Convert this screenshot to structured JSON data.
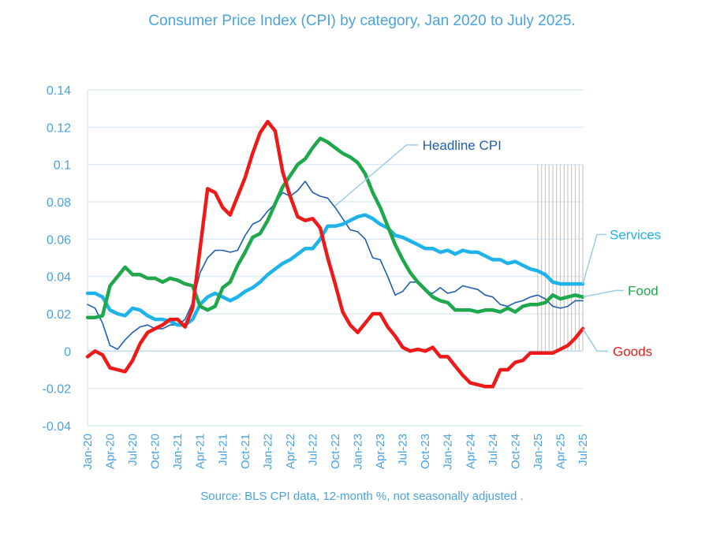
{
  "chart_data": {
    "type": "line",
    "title": "Consumer Price Index (CPI) by category, Jan 2020 to July 2025.",
    "note": "Source: BLS CPI data, 12-month %, not seasonally adjusted .",
    "xlabel": "",
    "ylabel": "",
    "ylim": [
      -0.04,
      0.14
    ],
    "yticks": [
      "0.14",
      "0.12",
      "0.1",
      "0.08",
      "0.06",
      "0.04",
      "0.02",
      "0",
      "-0.02",
      "-0.04"
    ],
    "ytick_values": [
      0.14,
      0.12,
      0.1,
      0.08,
      0.06,
      0.04,
      0.02,
      0,
      -0.02,
      -0.04
    ],
    "xtick_labels": [
      "Jan-20",
      "Apr-20",
      "Jul-20",
      "Oct-20",
      "Jan-21",
      "Apr-21",
      "Jul-21",
      "Oct-21",
      "Jan-22",
      "Apr-22",
      "Jul-22",
      "Oct-22",
      "Jan-23",
      "Apr-23",
      "Jul-23",
      "Oct-23",
      "Jan-24",
      "Apr-24",
      "Jul-24",
      "Oct-24",
      "Jan-25",
      "Apr-25",
      "Jul-25"
    ],
    "xtick_index": [
      0,
      3,
      6,
      9,
      12,
      15,
      18,
      21,
      24,
      27,
      30,
      33,
      36,
      39,
      42,
      45,
      48,
      51,
      54,
      57,
      60,
      63,
      66
    ],
    "n_months": 67,
    "grid": true,
    "forecast_shading": {
      "start_index": 60,
      "end_index": 66,
      "ymin": 0,
      "ymax": 0.1
    },
    "series": [
      {
        "name": "Headline CPI",
        "label": "Headline CPI",
        "color": "#1f5fb0",
        "width": 1.6,
        "callout": {
          "index": 33,
          "side": "above"
        },
        "values": [
          0.025,
          0.023,
          0.015,
          0.003,
          0.001,
          0.006,
          0.01,
          0.013,
          0.014,
          0.012,
          0.012,
          0.014,
          0.014,
          0.017,
          0.026,
          0.042,
          0.05,
          0.054,
          0.054,
          0.053,
          0.054,
          0.062,
          0.068,
          0.07,
          0.075,
          0.079,
          0.085,
          0.083,
          0.086,
          0.091,
          0.085,
          0.083,
          0.082,
          0.077,
          0.071,
          0.065,
          0.064,
          0.06,
          0.05,
          0.049,
          0.04,
          0.03,
          0.032,
          0.037,
          0.037,
          0.032,
          0.031,
          0.034,
          0.031,
          0.032,
          0.035,
          0.034,
          0.033,
          0.03,
          0.029,
          0.025,
          0.024,
          0.026,
          0.027,
          0.029,
          0.03,
          0.028,
          0.024,
          0.023,
          0.024,
          0.027,
          0.027
        ]
      },
      {
        "name": "Services",
        "label": "Services",
        "color": "#1eb3ea",
        "width": 4.5,
        "values": [
          0.031,
          0.031,
          0.029,
          0.022,
          0.02,
          0.019,
          0.023,
          0.022,
          0.019,
          0.017,
          0.017,
          0.016,
          0.014,
          0.014,
          0.017,
          0.025,
          0.029,
          0.031,
          0.029,
          0.027,
          0.029,
          0.032,
          0.034,
          0.037,
          0.041,
          0.044,
          0.047,
          0.049,
          0.052,
          0.055,
          0.055,
          0.06,
          0.067,
          0.067,
          0.068,
          0.07,
          0.072,
          0.073,
          0.071,
          0.068,
          0.066,
          0.062,
          0.061,
          0.059,
          0.057,
          0.055,
          0.055,
          0.053,
          0.054,
          0.052,
          0.054,
          0.053,
          0.053,
          0.051,
          0.049,
          0.049,
          0.047,
          0.048,
          0.046,
          0.044,
          0.043,
          0.041,
          0.037,
          0.036,
          0.036,
          0.036,
          0.036
        ]
      },
      {
        "name": "Food",
        "label": "Food",
        "color": "#1ea84b",
        "width": 4.5,
        "values": [
          0.018,
          0.018,
          0.019,
          0.035,
          0.04,
          0.045,
          0.041,
          0.041,
          0.039,
          0.039,
          0.037,
          0.039,
          0.038,
          0.036,
          0.035,
          0.024,
          0.022,
          0.024,
          0.034,
          0.037,
          0.046,
          0.053,
          0.061,
          0.063,
          0.07,
          0.079,
          0.088,
          0.094,
          0.1,
          0.103,
          0.109,
          0.114,
          0.112,
          0.109,
          0.106,
          0.104,
          0.101,
          0.095,
          0.085,
          0.077,
          0.067,
          0.057,
          0.049,
          0.042,
          0.037,
          0.033,
          0.029,
          0.027,
          0.026,
          0.022,
          0.022,
          0.022,
          0.021,
          0.022,
          0.022,
          0.021,
          0.023,
          0.021,
          0.024,
          0.025,
          0.025,
          0.026,
          0.03,
          0.028,
          0.029,
          0.03,
          0.029
        ]
      },
      {
        "name": "Goods",
        "label": "Goods",
        "color": "#ee1a1a",
        "width": 4.5,
        "values": [
          -0.003,
          0.0,
          -0.002,
          -0.009,
          -0.01,
          -0.011,
          -0.005,
          0.004,
          0.01,
          0.012,
          0.014,
          0.017,
          0.017,
          0.013,
          0.023,
          0.055,
          0.087,
          0.085,
          0.077,
          0.073,
          0.083,
          0.093,
          0.106,
          0.117,
          0.123,
          0.118,
          0.096,
          0.083,
          0.072,
          0.07,
          0.071,
          0.066,
          0.05,
          0.036,
          0.021,
          0.014,
          0.01,
          0.015,
          0.02,
          0.02,
          0.013,
          0.008,
          0.002,
          0.0,
          0.001,
          0.0,
          0.002,
          -0.003,
          -0.003,
          -0.008,
          -0.013,
          -0.017,
          -0.018,
          -0.019,
          -0.019,
          -0.01,
          -0.01,
          -0.006,
          -0.005,
          -0.001,
          -0.001,
          -0.001,
          -0.001,
          0.001,
          0.003,
          0.007,
          0.012
        ]
      }
    ]
  }
}
